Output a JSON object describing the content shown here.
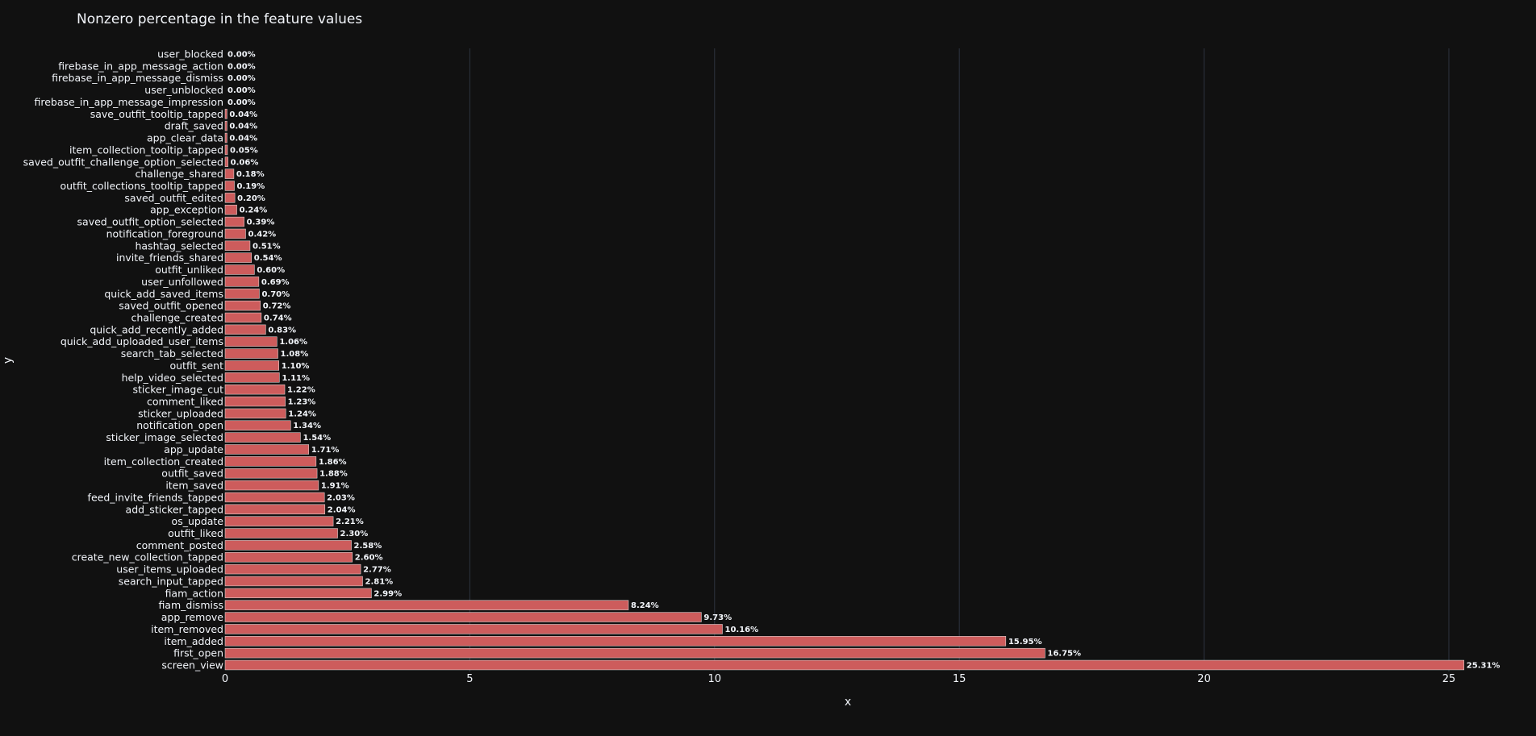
{
  "chart_data": {
    "type": "bar",
    "orientation": "horizontal",
    "title": "Nonzero percentage in the feature values",
    "xlabel": "x",
    "ylabel": "y",
    "xlim": [
      0,
      26.5
    ],
    "x_ticks": [
      0,
      5,
      10,
      15,
      20,
      25
    ],
    "grid": true,
    "categories": [
      "user_blocked",
      "firebase_in_app_message_action",
      "firebase_in_app_message_dismiss",
      "user_unblocked",
      "firebase_in_app_message_impression",
      "save_outfit_tooltip_tapped",
      "draft_saved",
      "app_clear_data",
      "item_collection_tooltip_tapped",
      "saved_outfit_challenge_option_selected",
      "challenge_shared",
      "outfit_collections_tooltip_tapped",
      "saved_outfit_edited",
      "app_exception",
      "saved_outfit_option_selected",
      "notification_foreground",
      "hashtag_selected",
      "invite_friends_shared",
      "outfit_unliked",
      "user_unfollowed",
      "quick_add_saved_items",
      "saved_outfit_opened",
      "challenge_created",
      "quick_add_recently_added",
      "quick_add_uploaded_user_items",
      "search_tab_selected",
      "outfit_sent",
      "help_video_selected",
      "sticker_image_cut",
      "comment_liked",
      "sticker_uploaded",
      "notification_open",
      "sticker_image_selected",
      "app_update",
      "item_collection_created",
      "outfit_saved",
      "item_saved",
      "feed_invite_friends_tapped",
      "add_sticker_tapped",
      "os_update",
      "outfit_liked",
      "comment_posted",
      "create_new_collection_tapped",
      "user_items_uploaded",
      "search_input_tapped",
      "fiam_action",
      "fiam_dismiss",
      "app_remove",
      "item_removed",
      "item_added",
      "first_open",
      "screen_view"
    ],
    "values": [
      0.0,
      0.0,
      0.0,
      0.0,
      0.0,
      0.04,
      0.04,
      0.04,
      0.05,
      0.06,
      0.18,
      0.19,
      0.2,
      0.24,
      0.39,
      0.42,
      0.51,
      0.54,
      0.6,
      0.69,
      0.7,
      0.72,
      0.74,
      0.83,
      1.06,
      1.08,
      1.1,
      1.11,
      1.22,
      1.23,
      1.24,
      1.34,
      1.54,
      1.71,
      1.86,
      1.88,
      1.91,
      2.03,
      2.04,
      2.21,
      2.3,
      2.58,
      2.6,
      2.77,
      2.81,
      2.99,
      8.24,
      9.73,
      10.16,
      15.95,
      16.75,
      25.31
    ],
    "labels": [
      "0.00%",
      "0.00%",
      "0.00%",
      "0.00%",
      "0.00%",
      "0.04%",
      "0.04%",
      "0.04%",
      "0.05%",
      "0.06%",
      "0.18%",
      "0.19%",
      "0.20%",
      "0.24%",
      "0.39%",
      "0.42%",
      "0.51%",
      "0.54%",
      "0.60%",
      "0.69%",
      "0.70%",
      "0.72%",
      "0.74%",
      "0.83%",
      "1.06%",
      "1.08%",
      "1.10%",
      "1.11%",
      "1.22%",
      "1.23%",
      "1.24%",
      "1.34%",
      "1.54%",
      "1.71%",
      "1.86%",
      "1.88%",
      "1.91%",
      "2.03%",
      "2.04%",
      "2.21%",
      "2.30%",
      "2.58%",
      "2.60%",
      "2.77%",
      "2.81%",
      "2.99%",
      "8.24%",
      "9.73%",
      "10.16%",
      "15.95%",
      "16.75%",
      "25.31%"
    ]
  },
  "colors": {
    "background": "#111111",
    "bar": "#cd5c5c",
    "bar_edge": "#e8e8e8",
    "grid": "#2e3440",
    "text": "#f2f5fa",
    "axis_line": "#cfd3da"
  }
}
